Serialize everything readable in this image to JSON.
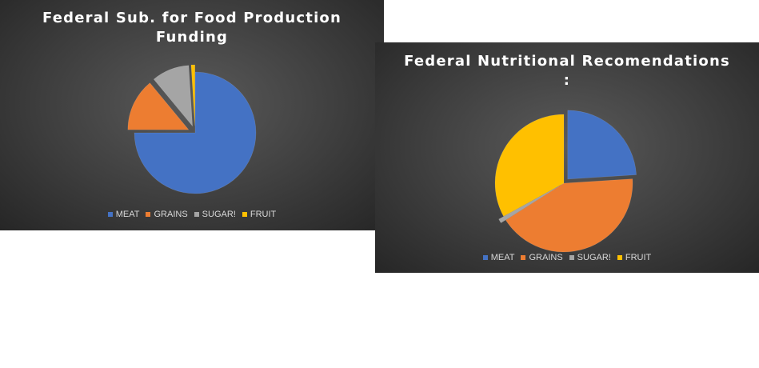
{
  "colors": {
    "meat": "#4472C4",
    "grains": "#ED7D31",
    "sugar": "#A5A5A5",
    "fruit": "#FFC000"
  },
  "chart_data": [
    {
      "type": "pie",
      "title_lines": [
        "Federal Sub. for Food Production",
        "Funding"
      ],
      "categories": [
        "MEAT",
        "GRAINS",
        "SUGAR!",
        "FRUIT"
      ],
      "values": [
        75,
        14,
        10,
        1
      ],
      "exploded": [
        "GRAINS",
        "SUGAR!",
        "FRUIT"
      ],
      "legend_position": "bottom"
    },
    {
      "type": "pie",
      "title_lines": [
        "Federal Nutritional Recomendations",
        ":"
      ],
      "categories": [
        "MEAT",
        "GRAINS",
        "SUGAR!",
        "FRUIT"
      ],
      "values": [
        24,
        42,
        1,
        33
      ],
      "exploded": [
        "MEAT",
        "SUGAR!"
      ],
      "legend_position": "bottom"
    }
  ]
}
